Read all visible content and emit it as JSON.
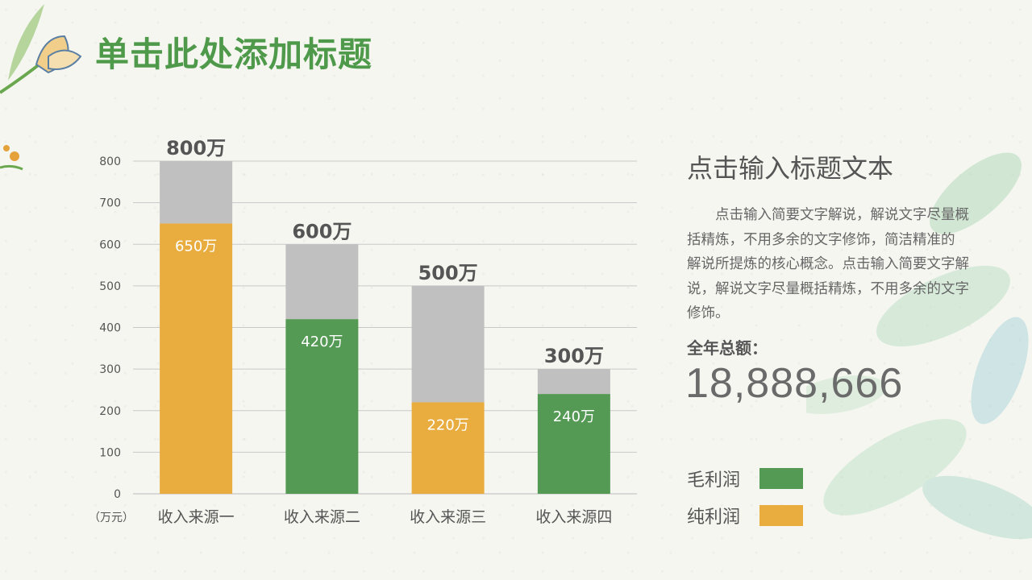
{
  "title": "单击此处添加标题",
  "side": {
    "title": "点击输入标题文本",
    "description": "点击输入简要文字解说，解说文字尽量概括精炼，不用多余的文字修饰，简洁精准的  解说所提炼的核心概念。点击输入简要文字解说，解说文字尽量概括精炼，不用多余的文字修饰。",
    "total_label": "全年总额：",
    "total_value": "18,888,666"
  },
  "colors": {
    "gray": "#c0c0c0",
    "orange": "#e9ac3f",
    "green": "#559a54",
    "title_green": "#4f9a4a"
  },
  "legend": [
    {
      "name": "毛利润",
      "color": "#559a54"
    },
    {
      "name": "纯利润",
      "color": "#e9ac3f"
    }
  ],
  "chart_data": {
    "type": "bar",
    "stacked": true,
    "categories": [
      "收入来源一",
      "收入来源二",
      "收入来源三",
      "收入来源四"
    ],
    "unit_label": "（万元）",
    "ylim": [
      0,
      800
    ],
    "yticks": [
      0,
      100,
      200,
      300,
      400,
      500,
      600,
      700,
      800
    ],
    "grid": true,
    "totals": [
      800,
      600,
      500,
      300
    ],
    "total_labels": [
      "800万",
      "600万",
      "500万",
      "300万"
    ],
    "inner_values": [
      650,
      420,
      220,
      240
    ],
    "inner_labels": [
      "650万",
      "420万",
      "220万",
      "240万"
    ],
    "inner_colors": [
      "#e9ac3f",
      "#559a54",
      "#e9ac3f",
      "#559a54"
    ]
  }
}
